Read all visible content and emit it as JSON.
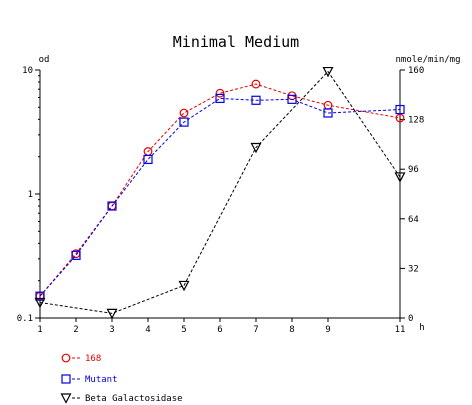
{
  "chart_data": {
    "type": "line",
    "title": "Minimal Medium",
    "xlabel": "h",
    "ylabel_left": "od",
    "ylabel_right": "nmole/min/mg",
    "x": [
      1,
      2,
      3,
      4,
      5,
      6,
      7,
      8,
      9,
      11
    ],
    "x_ticks": [
      "1",
      "2",
      "3",
      "4",
      "5",
      "6",
      "7",
      "8",
      "9",
      "11"
    ],
    "xlim": [
      1,
      11
    ],
    "y_left_scale": "log",
    "y_left_lim": [
      0.1,
      10
    ],
    "y_left_ticks": [
      "0.1",
      "1",
      "10"
    ],
    "y_right_lim": [
      0,
      160
    ],
    "y_right_ticks": [
      "0",
      "32",
      "64",
      "96",
      "128",
      "160"
    ],
    "grid": false,
    "legend_position": "bottom-left",
    "series": [
      {
        "name": "168",
        "axis": "left",
        "color": "#e60000",
        "marker": "circle",
        "x": [
          1,
          2,
          3,
          4,
          5,
          6,
          7,
          8,
          9,
          11
        ],
        "values": [
          0.15,
          0.33,
          0.8,
          2.2,
          4.5,
          6.5,
          7.7,
          6.2,
          5.2,
          4.1
        ]
      },
      {
        "name": "Mutant",
        "axis": "left",
        "color": "#0000e6",
        "marker": "square",
        "x": [
          1,
          2,
          3,
          4,
          5,
          6,
          7,
          8,
          9,
          11
        ],
        "values": [
          0.15,
          0.32,
          0.8,
          1.9,
          3.8,
          5.9,
          5.7,
          5.8,
          4.5,
          4.8
        ]
      },
      {
        "name": "Beta Galactosidase",
        "axis": "right",
        "color": "#000000",
        "marker": "triangle-down",
        "x": [
          1,
          3,
          5,
          7,
          9,
          11
        ],
        "values": [
          10,
          3,
          21,
          110,
          159,
          91
        ]
      }
    ]
  }
}
